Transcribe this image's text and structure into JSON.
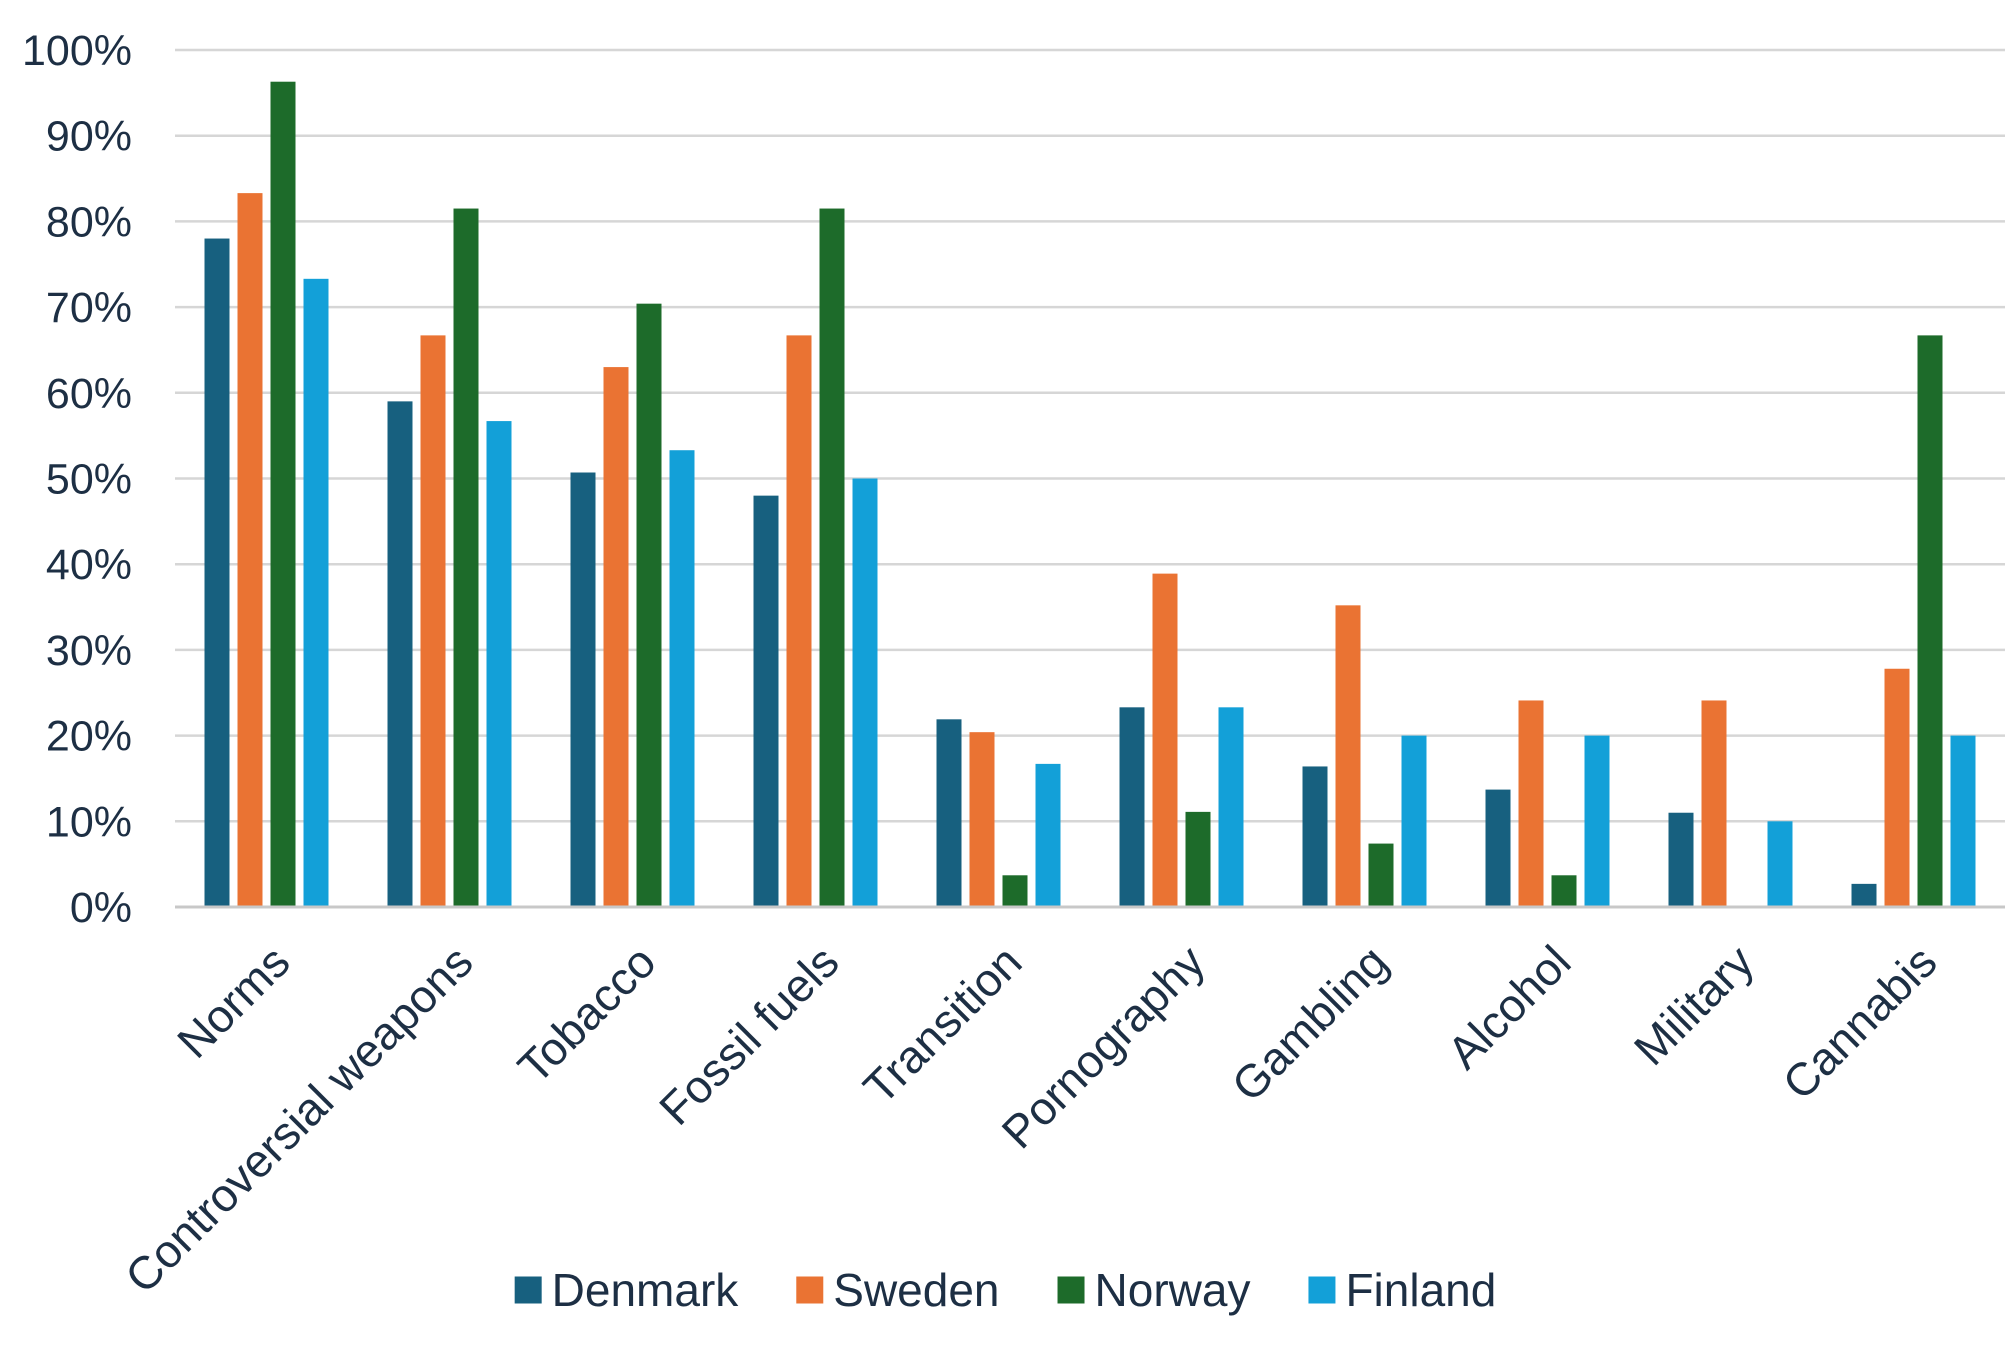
{
  "chart_data": {
    "type": "bar",
    "title": "",
    "xlabel": "",
    "ylabel": "",
    "ylim": [
      0,
      100
    ],
    "y_ticks": [
      "0%",
      "10%",
      "20%",
      "30%",
      "40%",
      "50%",
      "60%",
      "70%",
      "80%",
      "90%",
      "100%"
    ],
    "categories": [
      "Norms",
      "Controversial weapons",
      "Tobacco",
      "Fossil fuels",
      "Transition",
      "Pornography",
      "Gambling",
      "Alcohol",
      "Military",
      "Cannabis"
    ],
    "series": [
      {
        "name": "Denmark",
        "color": "#17607f",
        "values": [
          78,
          59,
          50.7,
          48,
          21.9,
          23.3,
          16.4,
          13.7,
          11,
          2.7
        ]
      },
      {
        "name": "Sweden",
        "color": "#ea7333",
        "values": [
          83.3,
          66.7,
          63,
          66.7,
          20.4,
          38.9,
          35.2,
          24.1,
          24.1,
          27.8
        ]
      },
      {
        "name": "Norway",
        "color": "#1d6b2a",
        "values": [
          96.3,
          81.5,
          70.4,
          81.5,
          3.7,
          11.1,
          7.4,
          3.7,
          0,
          66.7
        ]
      },
      {
        "name": "Finland",
        "color": "#13a0d8",
        "values": [
          73.3,
          56.7,
          53.3,
          50,
          16.7,
          23.3,
          20,
          20,
          10,
          20
        ]
      }
    ],
    "grid": true,
    "legend_position": "bottom"
  }
}
